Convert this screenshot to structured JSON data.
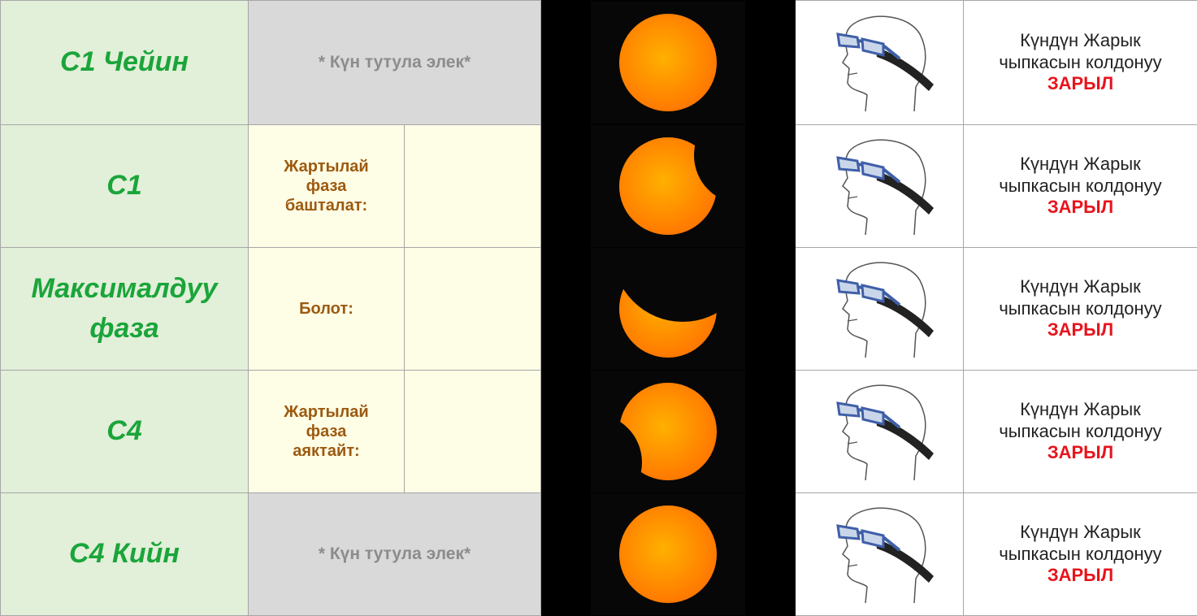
{
  "rows": [
    {
      "phase": "C1 Чейин",
      "note": "* Күн тутула элек*",
      "warning": "Күндүн Жарык чыпкасын колдонуу",
      "required": "ЗАРЫЛ"
    },
    {
      "phase": "C1",
      "label": "Жартылай фаза башталат:",
      "warning": "Күндүн Жарык чыпкасын колдонуу",
      "required": "ЗАРЫЛ"
    },
    {
      "phase": "Максималдуу фаза",
      "label": "Болот:",
      "warning": "Күндүн Жарык чыпкасын колдонуу",
      "required": "ЗАРЫЛ"
    },
    {
      "phase": "C4",
      "label": "Жартылай фаза аяктайт:",
      "warning": "Күндүн Жарык чыпкасын колдонуу",
      "required": "ЗАРЫЛ"
    },
    {
      "phase": "C4 Кийн",
      "note": "* Күн тутула элек*",
      "warning": "Күндүн Жарык чыпкасын колдонуу",
      "required": "ЗАРЫЛ"
    }
  ]
}
